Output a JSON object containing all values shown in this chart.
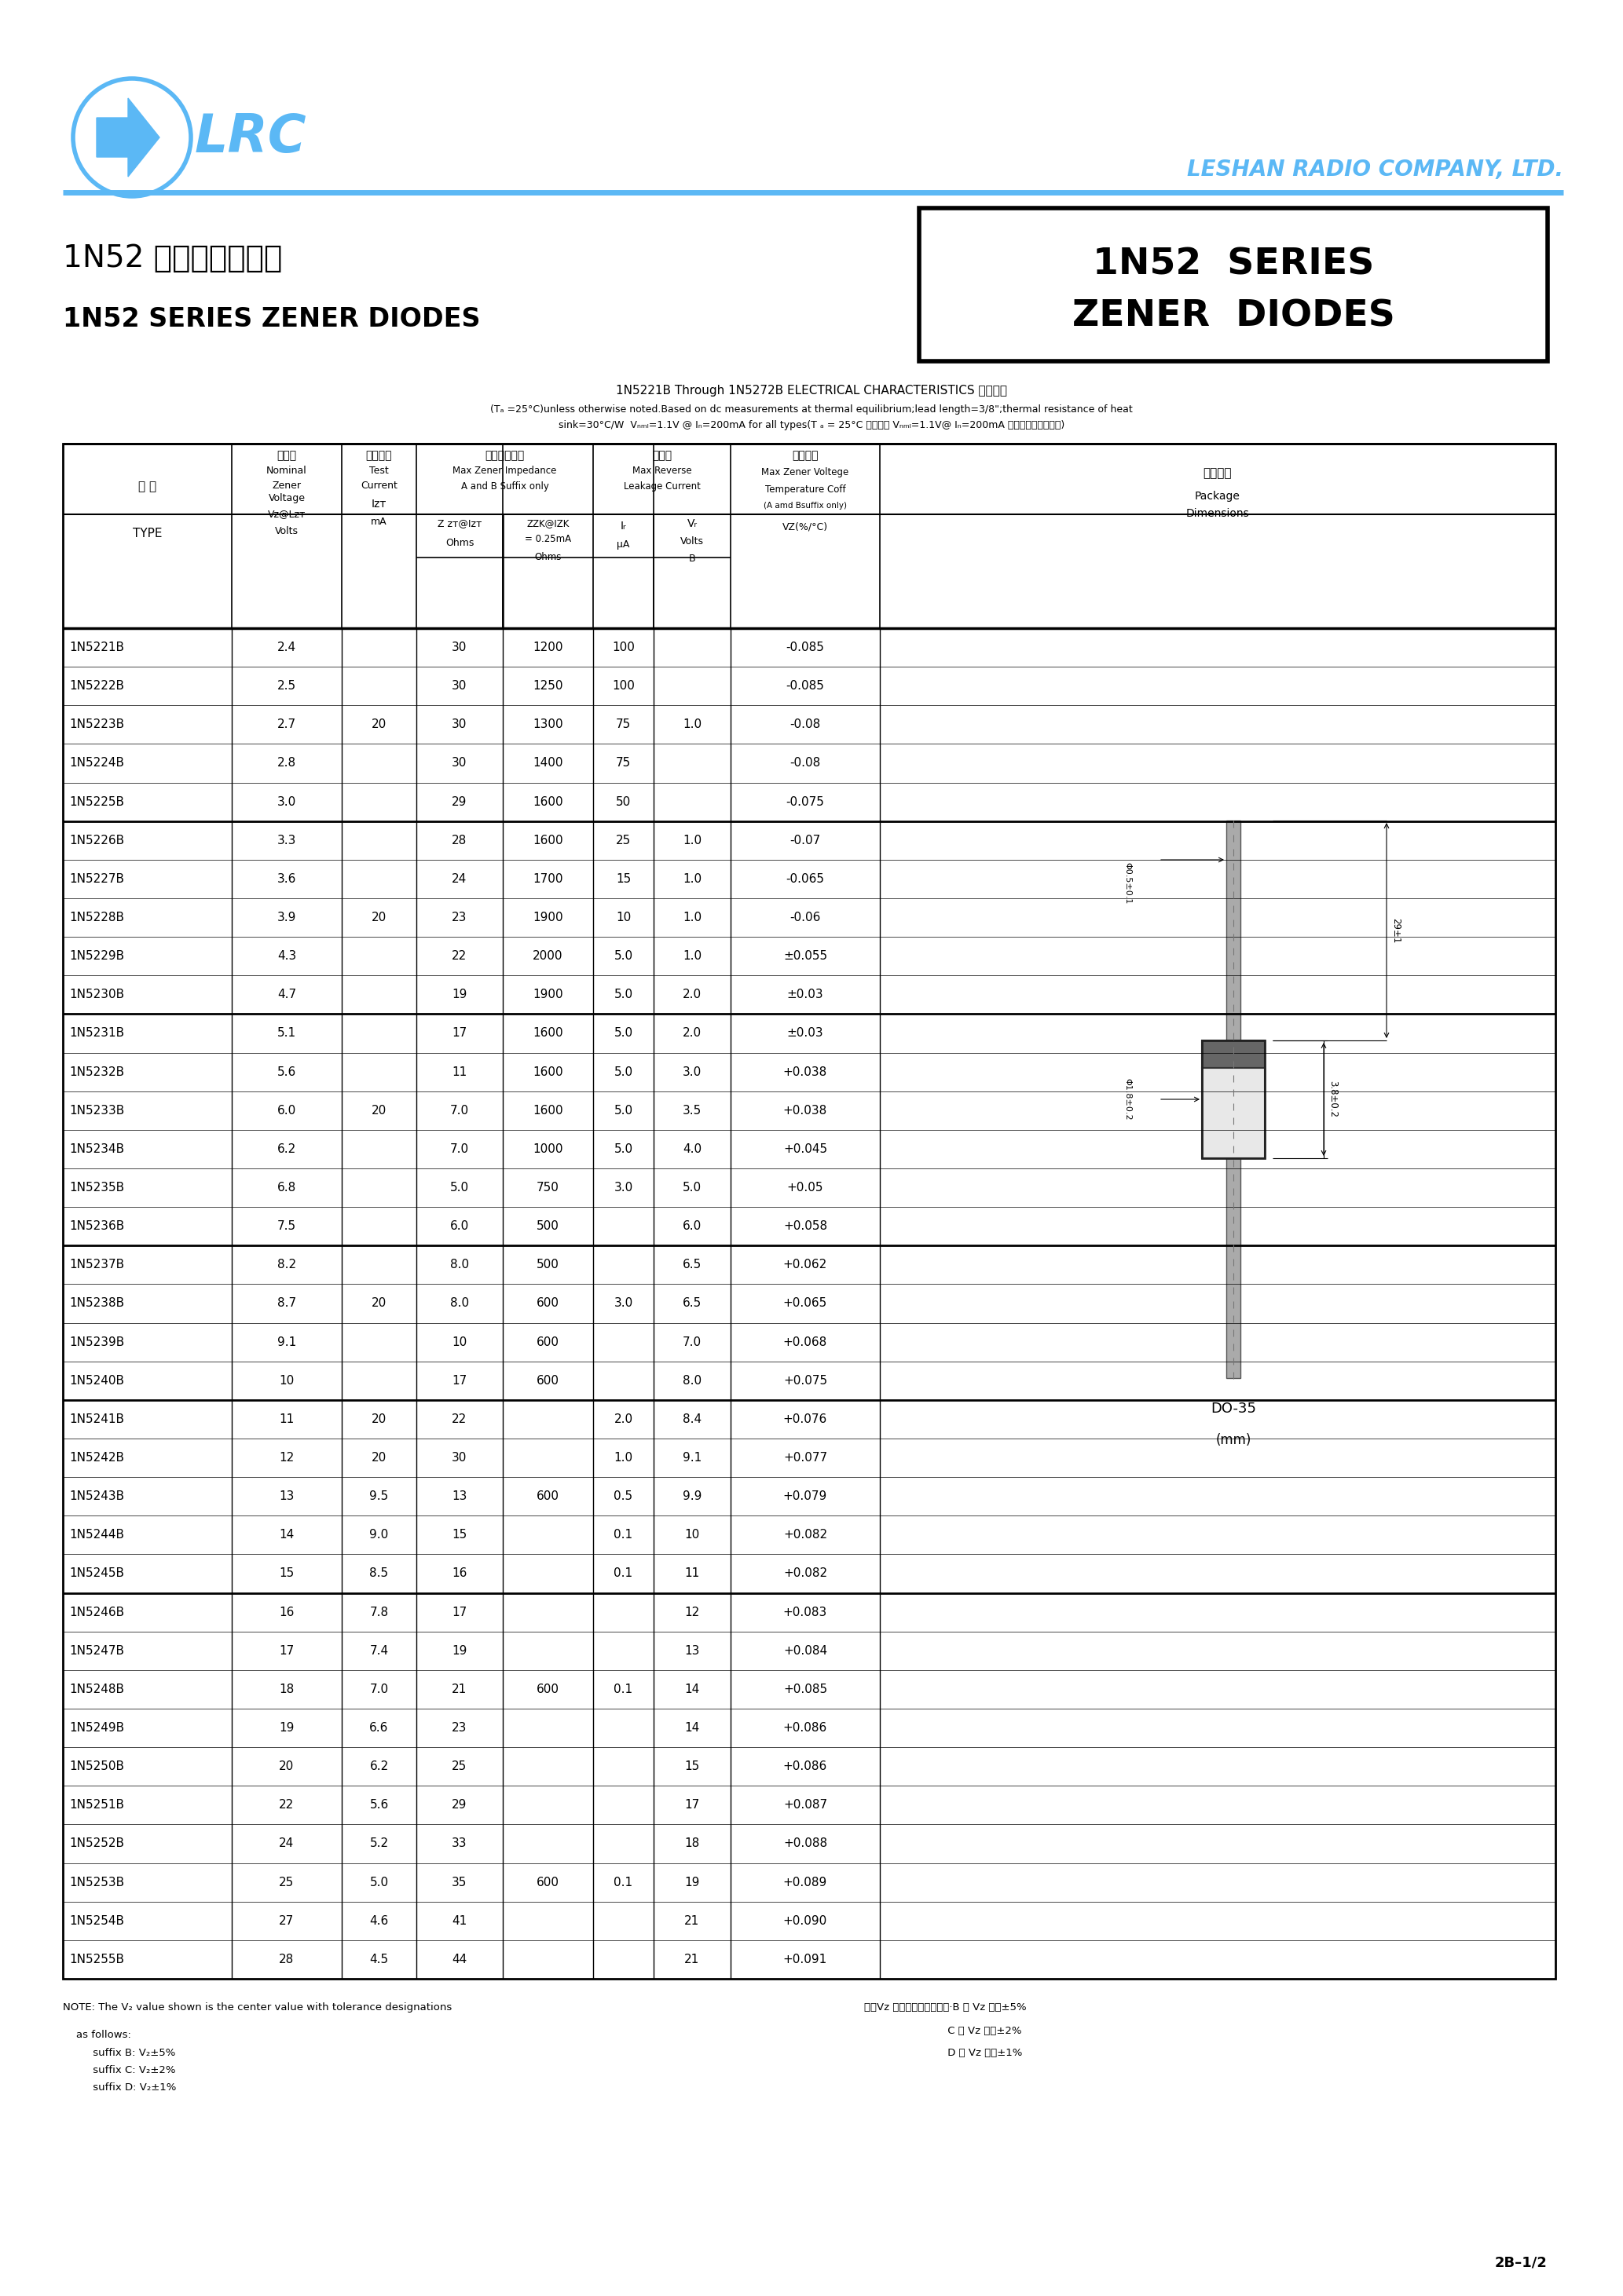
{
  "logo_color": "#5bb8f5",
  "company_name": "LESHAN RADIO COMPANY, LTD.",
  "title_zh": "1N52 系列稳压二极管",
  "title_en": "1N52 SERIES ZENER DIODES",
  "box_title_line1": "1N52  SERIES",
  "box_title_line2": "ZENER  DIODES",
  "elec_title": "1N5221B Through 1N5272B ELECTRICAL CHARACTERISTICS 电性参数",
  "elec_note1": "(Tₐ =25°C)unless otherwise noted.Based on dc measurements at thermal equilibrium;lead length=3/8\";thermal resistance of heat",
  "elec_note2": "sink=30°C/W  Vₙₘₗ=1.1V @ Iₙ=200mA for all types(T ₐ = 25°C 所有型号 Vₙₘₗ=1.1V@ Iₙ=200mA ，其它特别说明外。)",
  "rows": [
    [
      "1N5221B",
      "2.4",
      "",
      "30",
      "1200",
      "100",
      "",
      "-0.085"
    ],
    [
      "1N5222B",
      "2.5",
      "",
      "30",
      "1250",
      "100",
      "",
      "-0.085"
    ],
    [
      "1N5223B",
      "2.7",
      "20",
      "30",
      "1300",
      "75",
      "1.0",
      "-0.08"
    ],
    [
      "1N5224B",
      "2.8",
      "",
      "30",
      "1400",
      "75",
      "",
      "-0.08"
    ],
    [
      "1N5225B",
      "3.0",
      "",
      "29",
      "1600",
      "50",
      "",
      "-0.075"
    ],
    [
      "1N5226B",
      "3.3",
      "",
      "28",
      "1600",
      "25",
      "1.0",
      "-0.07"
    ],
    [
      "1N5227B",
      "3.6",
      "",
      "24",
      "1700",
      "15",
      "1.0",
      "-0.065"
    ],
    [
      "1N5228B",
      "3.9",
      "20",
      "23",
      "1900",
      "10",
      "1.0",
      "-0.06"
    ],
    [
      "1N5229B",
      "4.3",
      "",
      "22",
      "2000",
      "5.0",
      "1.0",
      "±0.055"
    ],
    [
      "1N5230B",
      "4.7",
      "",
      "19",
      "1900",
      "5.0",
      "2.0",
      "±0.03"
    ],
    [
      "1N5231B",
      "5.1",
      "",
      "17",
      "1600",
      "5.0",
      "2.0",
      "±0.03"
    ],
    [
      "1N5232B",
      "5.6",
      "",
      "11",
      "1600",
      "5.0",
      "3.0",
      "+0.038"
    ],
    [
      "1N5233B",
      "6.0",
      "20",
      "7.0",
      "1600",
      "5.0",
      "3.5",
      "+0.038"
    ],
    [
      "1N5234B",
      "6.2",
      "",
      "7.0",
      "1000",
      "5.0",
      "4.0",
      "+0.045"
    ],
    [
      "1N5235B",
      "6.8",
      "",
      "5.0",
      "750",
      "3.0",
      "5.0",
      "+0.05"
    ],
    [
      "1N5236B",
      "7.5",
      "",
      "6.0",
      "500",
      "",
      "6.0",
      "+0.058"
    ],
    [
      "1N5237B",
      "8.2",
      "",
      "8.0",
      "500",
      "",
      "6.5",
      "+0.062"
    ],
    [
      "1N5238B",
      "8.7",
      "20",
      "8.0",
      "600",
      "3.0",
      "6.5",
      "+0.065"
    ],
    [
      "1N5239B",
      "9.1",
      "",
      "10",
      "600",
      "",
      "7.0",
      "+0.068"
    ],
    [
      "1N5240B",
      "10",
      "",
      "17",
      "600",
      "",
      "8.0",
      "+0.075"
    ],
    [
      "1N5241B",
      "11",
      "20",
      "22",
      "",
      "2.0",
      "8.4",
      "+0.076"
    ],
    [
      "1N5242B",
      "12",
      "20",
      "30",
      "",
      "1.0",
      "9.1",
      "+0.077"
    ],
    [
      "1N5243B",
      "13",
      "9.5",
      "13",
      "600",
      "0.5",
      "9.9",
      "+0.079"
    ],
    [
      "1N5244B",
      "14",
      "9.0",
      "15",
      "",
      "0.1",
      "10",
      "+0.082"
    ],
    [
      "1N5245B",
      "15",
      "8.5",
      "16",
      "",
      "0.1",
      "11",
      "+0.082"
    ],
    [
      "1N5246B",
      "16",
      "7.8",
      "17",
      "",
      "",
      "12",
      "+0.083"
    ],
    [
      "1N5247B",
      "17",
      "7.4",
      "19",
      "",
      "",
      "13",
      "+0.084"
    ],
    [
      "1N5248B",
      "18",
      "7.0",
      "21",
      "600",
      "0.1",
      "14",
      "+0.085"
    ],
    [
      "1N5249B",
      "19",
      "6.6",
      "23",
      "",
      "",
      "14",
      "+0.086"
    ],
    [
      "1N5250B",
      "20",
      "6.2",
      "25",
      "",
      "",
      "15",
      "+0.086"
    ],
    [
      "1N5251B",
      "22",
      "5.6",
      "29",
      "",
      "",
      "17",
      "+0.087"
    ],
    [
      "1N5252B",
      "24",
      "5.2",
      "33",
      "",
      "",
      "18",
      "+0.088"
    ],
    [
      "1N5253B",
      "25",
      "5.0",
      "35",
      "600",
      "0.1",
      "19",
      "+0.089"
    ],
    [
      "1N5254B",
      "27",
      "4.6",
      "41",
      "",
      "",
      "21",
      "+0.090"
    ],
    [
      "1N5255B",
      "28",
      "4.5",
      "44",
      "",
      "",
      "21",
      "+0.091"
    ]
  ],
  "group_dividers_after": [
    4,
    9,
    15,
    19,
    24
  ],
  "note_left1": "NOTE: The V₂ value shown is the center value with tolerance designations",
  "note_left2": "    as follows:",
  "note_left3": "         suffix B: V₂±5%",
  "note_left4": "         suffix C: V₂±2%",
  "note_left5": "         suffix D: V₂±1%",
  "note_right1": "注：Vz 为稳压中心値，其中·B 型 Vz 容差±5%",
  "note_right2": "                         C 型 Vz 容差±2%",
  "note_right3": "                         D 型 Vz 容差±1%",
  "page_num": "2B–1/2"
}
